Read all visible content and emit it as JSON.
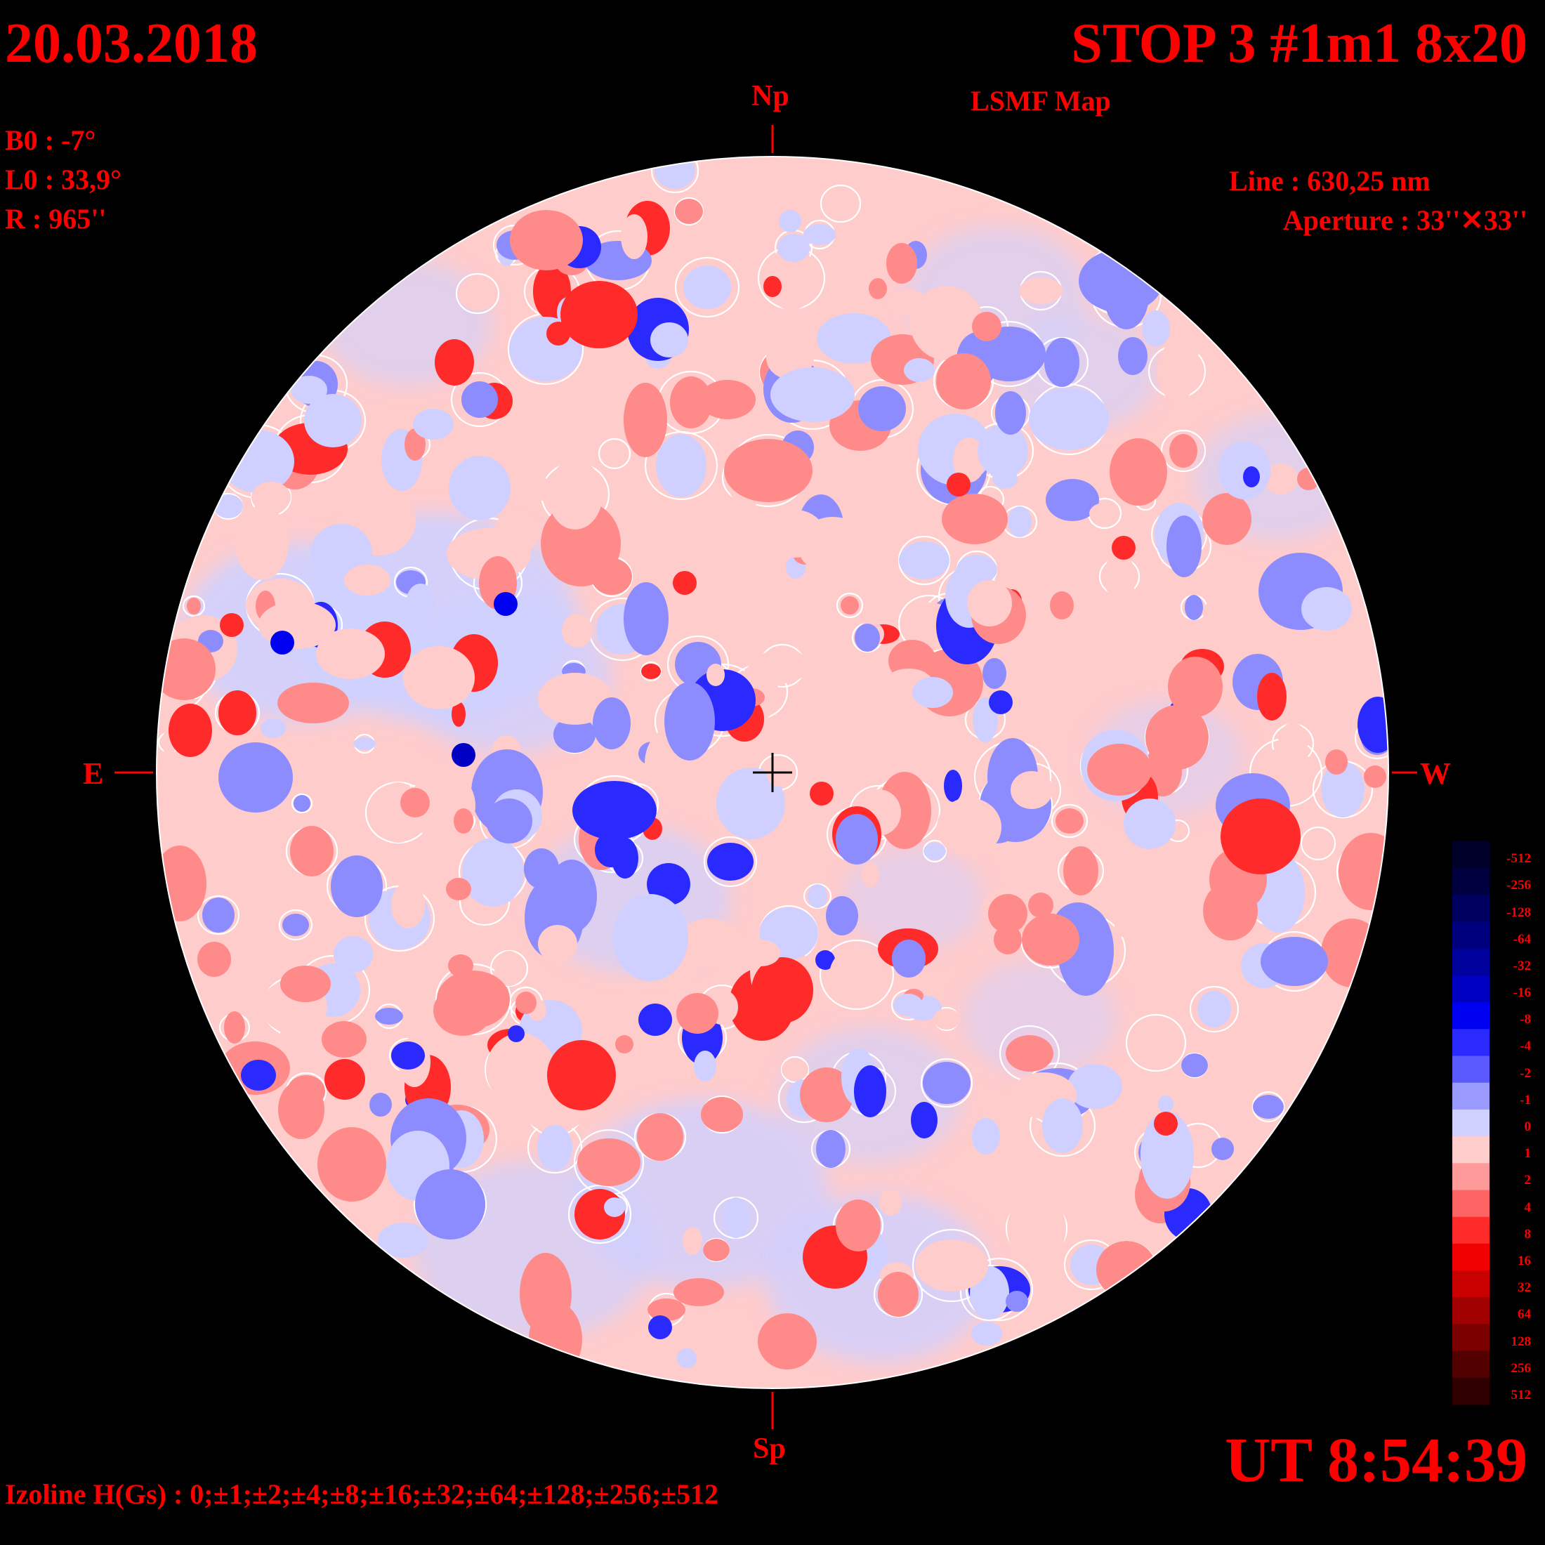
{
  "header": {
    "date": "20.03.2018",
    "title": "STOP 3 #1m1 8x20",
    "subtitle": "LSMF  Map"
  },
  "params": {
    "b0": "B0 : -7°",
    "l0": "L0 : 33,9°",
    "r": "R  : 965''"
  },
  "instrument": {
    "line": "Line :  630,25 nm",
    "aperture": "Aperture : 33''✕33''"
  },
  "directions": {
    "north": "Np",
    "south": "Sp",
    "east": "E",
    "west": "W"
  },
  "time": "UT 8:54:39",
  "izoline": "Izoline H(Gs) : 0;±1;±2;±4;±8;±16;±32;±64;±128;±256;±512",
  "scale": {
    "labels": [
      "-512",
      "-256",
      "-128",
      "-64",
      "-32",
      "-16",
      "-8",
      "-4",
      "-2",
      "-1",
      "0",
      "1",
      "2",
      "4",
      "8",
      "16",
      "32",
      "64",
      "128",
      "256",
      "512"
    ],
    "colors": [
      "#00002a",
      "#000040",
      "#000060",
      "#00007e",
      "#00009c",
      "#0000c2",
      "#0000f0",
      "#2a2aff",
      "#5a5aff",
      "#9a9aff",
      "#cfd0ff",
      "#ffcccc",
      "#ff9a9a",
      "#ff6464",
      "#ff2a2a",
      "#f00000",
      "#c80000",
      "#a00000",
      "#7a0000",
      "#520000",
      "#300000"
    ]
  },
  "colors": {
    "text": "#ff0000",
    "background": "#000000",
    "positive_weak": "#ffcccc",
    "positive_strong": "#ff2a2a",
    "negative_weak": "#cfd0ff",
    "negative_strong": "#2a2aff",
    "izoline": "#ffffff"
  }
}
